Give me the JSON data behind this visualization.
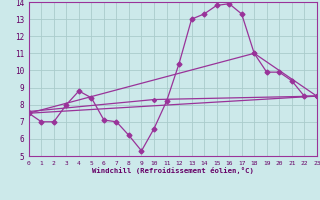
{
  "xlabel": "Windchill (Refroidissement éolien,°C)",
  "background_color": "#cce9ea",
  "grid_color": "#aacccc",
  "line_color": "#993399",
  "text_color": "#660066",
  "spine_color": "#993399",
  "ylim": [
    5,
    14
  ],
  "xlim": [
    0,
    23
  ],
  "yticks": [
    5,
    6,
    7,
    8,
    9,
    10,
    11,
    12,
    13,
    14
  ],
  "xticks": [
    0,
    1,
    2,
    3,
    4,
    5,
    6,
    7,
    8,
    9,
    10,
    11,
    12,
    13,
    14,
    15,
    16,
    17,
    18,
    19,
    20,
    21,
    22,
    23
  ],
  "main_x": [
    0,
    1,
    2,
    3,
    4,
    5,
    6,
    7,
    8,
    9,
    10,
    11,
    12,
    13,
    14,
    15,
    16,
    17,
    18,
    19,
    20,
    21,
    22,
    23
  ],
  "main_y": [
    7.5,
    7.0,
    7.0,
    8.0,
    8.8,
    8.4,
    7.1,
    7.0,
    6.2,
    5.3,
    6.6,
    8.2,
    10.4,
    13.0,
    13.3,
    13.8,
    13.9,
    13.3,
    11.0,
    9.9,
    9.9,
    9.4,
    8.5,
    8.5
  ],
  "trend_lines": [
    {
      "x": [
        0,
        23
      ],
      "y": [
        7.5,
        8.5
      ]
    },
    {
      "x": [
        0,
        10,
        23
      ],
      "y": [
        7.6,
        8.3,
        8.5
      ]
    },
    {
      "x": [
        0,
        18,
        23
      ],
      "y": [
        7.5,
        11.0,
        8.5
      ]
    }
  ]
}
